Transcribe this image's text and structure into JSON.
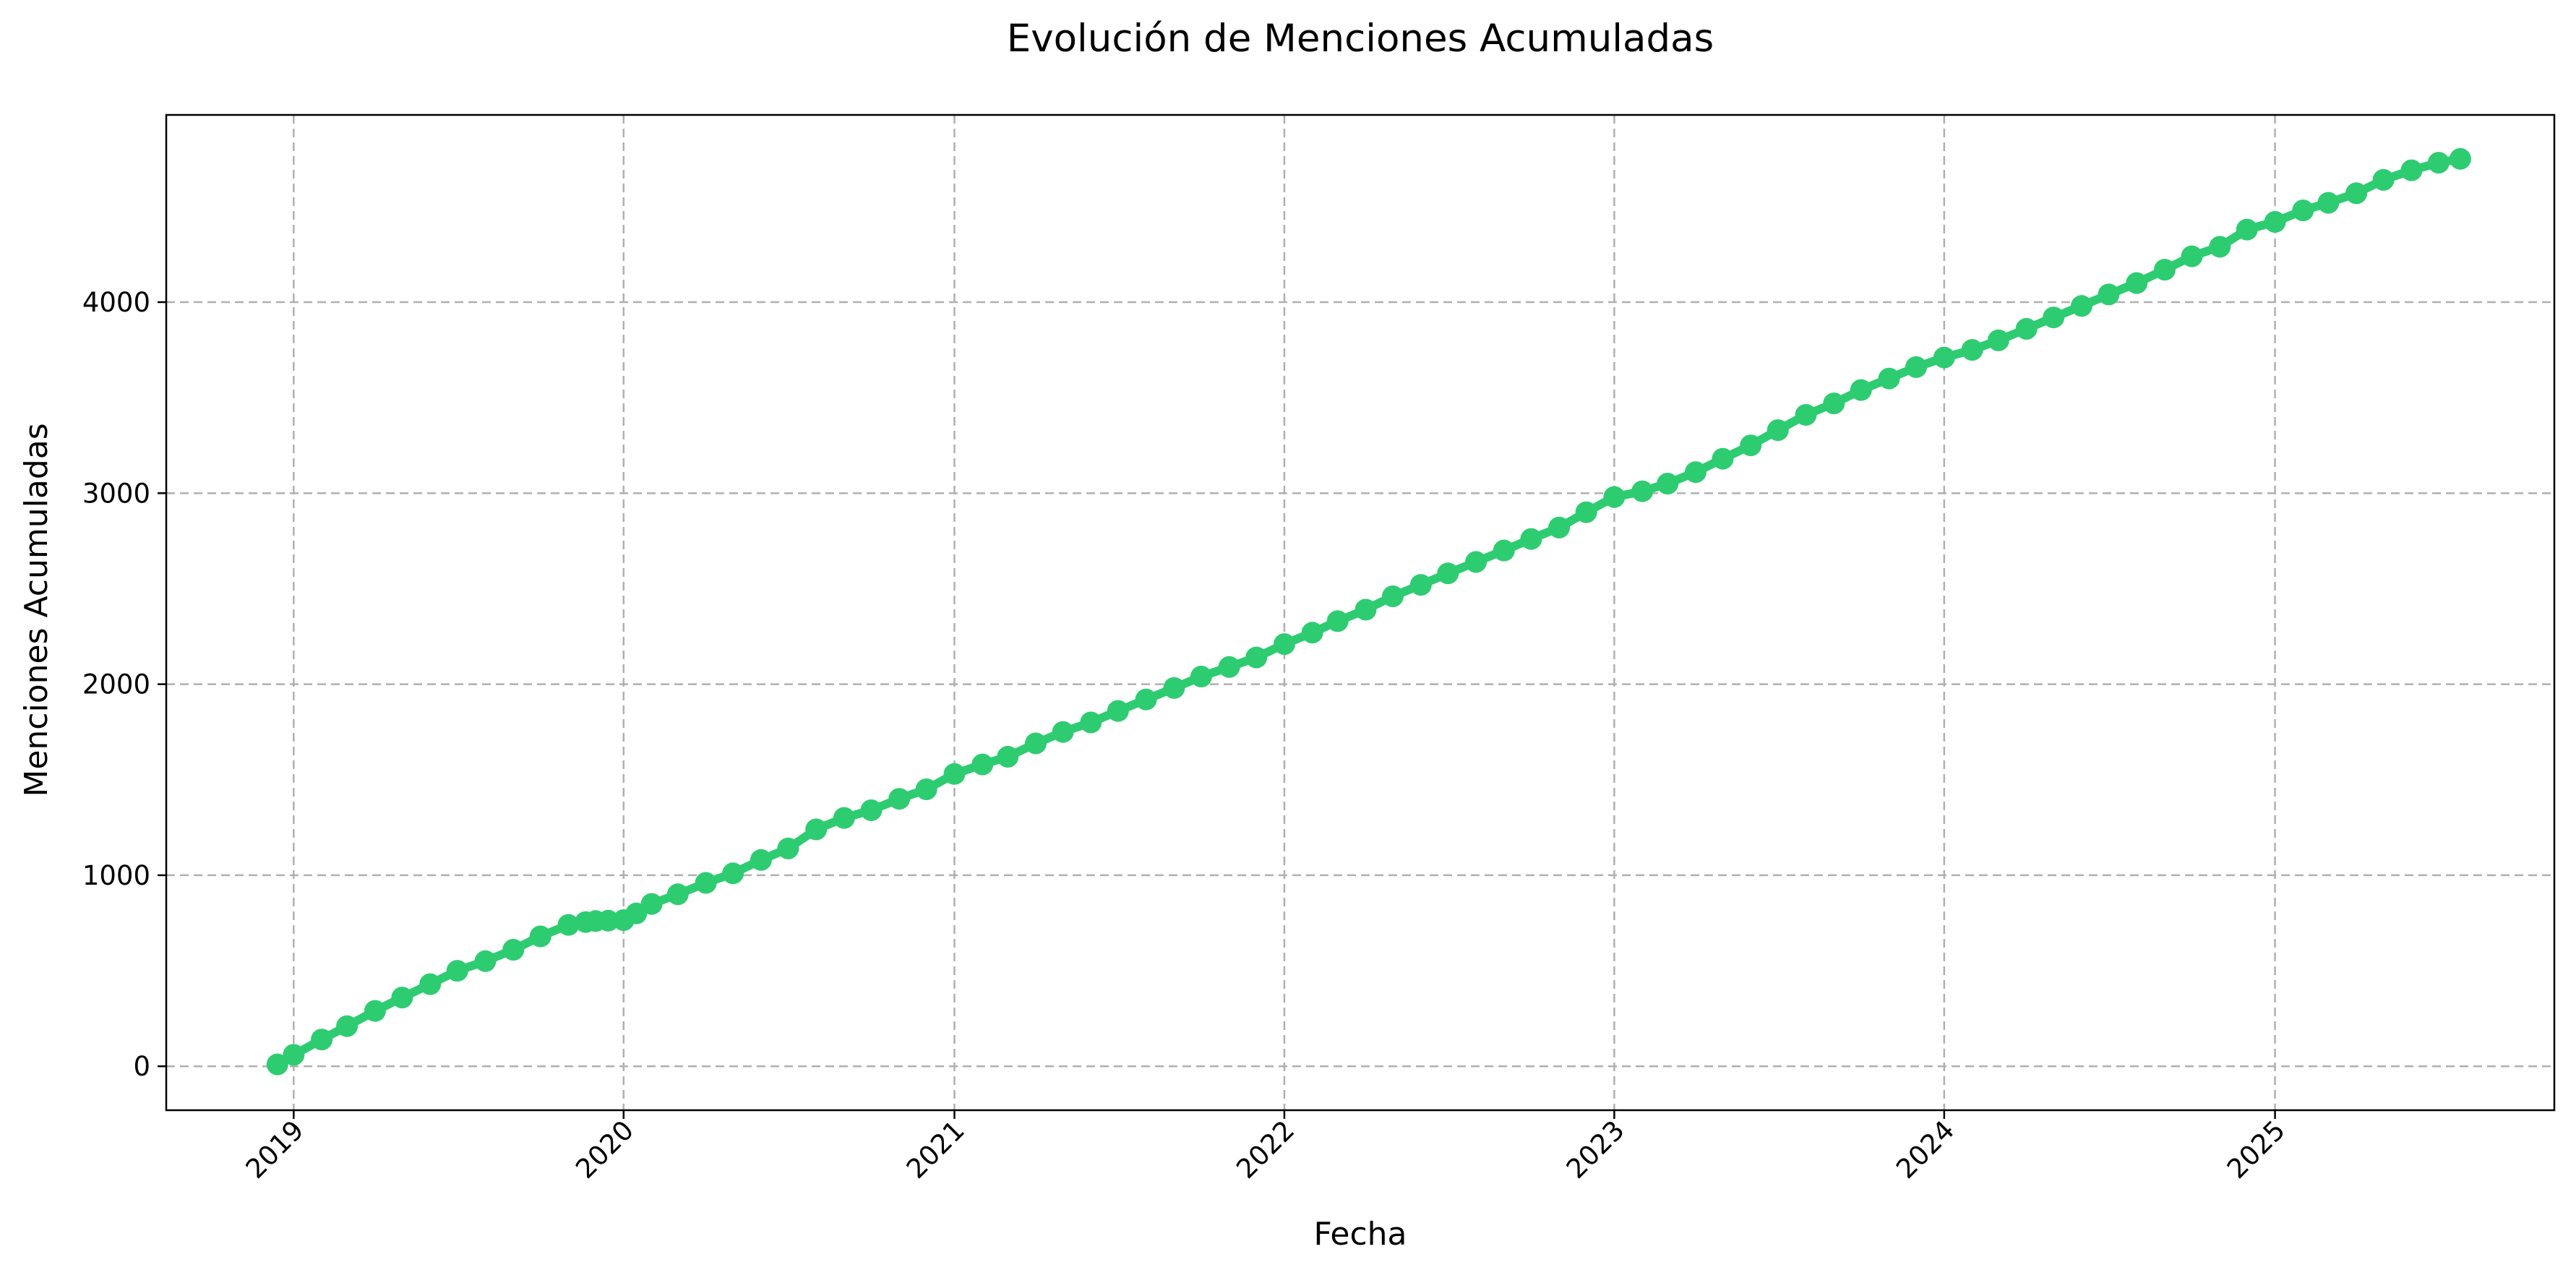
{
  "chart_data": {
    "type": "line",
    "title": "Evolución de Menciones Acumuladas",
    "xlabel": "Fecha",
    "ylabel": "Menciones Acumuladas",
    "xlim": [
      "2018-08-13",
      "2025-11-06"
    ],
    "ylim": [
      -230,
      4980
    ],
    "grid": true,
    "legend": "none",
    "x_ticks": [
      "2019",
      "2020",
      "2021",
      "2022",
      "2023",
      "2024",
      "2025"
    ],
    "y_ticks": [
      "0",
      "1000",
      "2000",
      "3000",
      "4000"
    ],
    "series": [
      {
        "color": "#2ecc71",
        "marker": "circle",
        "x": [
          "2018-12-14",
          "2019-01-01",
          "2019-02-01",
          "2019-03-01",
          "2019-04-01",
          "2019-05-01",
          "2019-06-01",
          "2019-07-01",
          "2019-08-01",
          "2019-09-01",
          "2019-10-01",
          "2019-11-01",
          "2019-11-20",
          "2019-12-01",
          "2019-12-15",
          "2020-01-01",
          "2020-01-15",
          "2020-02-01",
          "2020-03-01",
          "2020-04-01",
          "2020-05-01",
          "2020-06-01",
          "2020-07-01",
          "2020-08-01",
          "2020-09-01",
          "2020-10-01",
          "2020-11-01",
          "2020-12-01",
          "2021-01-01",
          "2021-02-01",
          "2021-03-01",
          "2021-04-01",
          "2021-05-01",
          "2021-06-01",
          "2021-07-01",
          "2021-08-01",
          "2021-09-01",
          "2021-10-01",
          "2021-11-01",
          "2021-12-01",
          "2022-01-01",
          "2022-02-01",
          "2022-03-01",
          "2022-04-01",
          "2022-05-01",
          "2022-06-01",
          "2022-07-01",
          "2022-08-01",
          "2022-09-01",
          "2022-10-01",
          "2022-11-01",
          "2022-12-01",
          "2023-01-01",
          "2023-02-01",
          "2023-03-01",
          "2023-04-01",
          "2023-05-01",
          "2023-06-01",
          "2023-07-01",
          "2023-08-01",
          "2023-09-01",
          "2023-10-01",
          "2023-11-01",
          "2023-12-01",
          "2024-01-01",
          "2024-02-01",
          "2024-03-01",
          "2024-04-01",
          "2024-05-01",
          "2024-06-01",
          "2024-07-01",
          "2024-08-01",
          "2024-09-01",
          "2024-10-01",
          "2024-11-01",
          "2024-12-01",
          "2025-01-01",
          "2025-02-01",
          "2025-03-01",
          "2025-04-01",
          "2025-05-01",
          "2025-06-01",
          "2025-07-01",
          "2025-07-25"
        ],
        "y": [
          10,
          60,
          140,
          210,
          290,
          360,
          430,
          500,
          550,
          610,
          680,
          740,
          755,
          760,
          762,
          765,
          800,
          850,
          900,
          960,
          1010,
          1080,
          1140,
          1240,
          1300,
          1340,
          1400,
          1450,
          1530,
          1580,
          1620,
          1690,
          1750,
          1800,
          1860,
          1920,
          1980,
          2040,
          2090,
          2140,
          2210,
          2270,
          2330,
          2390,
          2460,
          2520,
          2580,
          2640,
          2700,
          2760,
          2820,
          2900,
          2980,
          3010,
          3050,
          3110,
          3180,
          3250,
          3330,
          3410,
          3470,
          3540,
          3600,
          3660,
          3710,
          3750,
          3800,
          3860,
          3920,
          3980,
          4040,
          4100,
          4170,
          4240,
          4290,
          4380,
          4420,
          4480,
          4520,
          4570,
          4640,
          4690,
          4730,
          4750
        ]
      }
    ]
  }
}
